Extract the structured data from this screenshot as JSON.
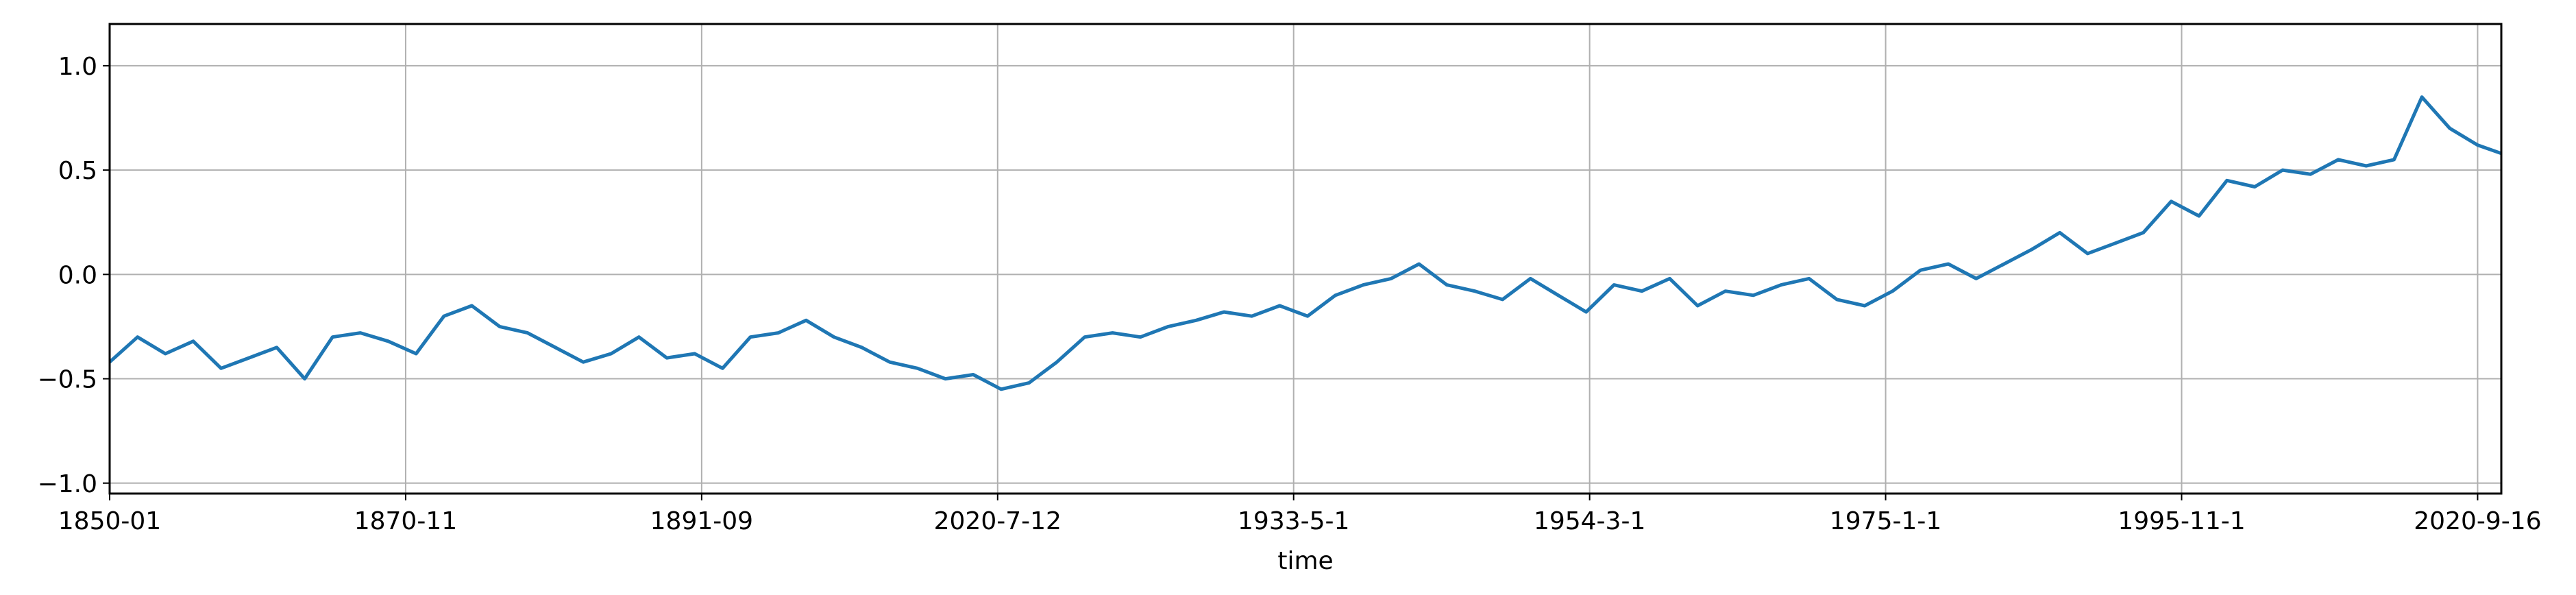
{
  "chart_data": {
    "type": "line",
    "title": "",
    "xlabel": "time",
    "ylabel": "",
    "grid": true,
    "legend": "none",
    "line_color": "#1f77b4",
    "xlim": [
      1850.0,
      2021.7
    ],
    "ylim": [
      -1.05,
      1.2
    ],
    "x_ticks": [
      {
        "value": 1850.0,
        "label": "1850-01"
      },
      {
        "value": 1871.25,
        "label": "1870-11"
      },
      {
        "value": 1892.5,
        "label": "1891-09"
      },
      {
        "value": 1913.75,
        "label": "2020-7-12"
      },
      {
        "value": 1935.0,
        "label": "1933-5-1"
      },
      {
        "value": 1956.25,
        "label": "1954-3-1"
      },
      {
        "value": 1977.5,
        "label": "1975-1-1"
      },
      {
        "value": 1998.75,
        "label": "1995-11-1"
      },
      {
        "value": 2020.0,
        "label": "2020-9-16"
      }
    ],
    "y_ticks": [
      {
        "value": -1.0,
        "label": "−1.0"
      },
      {
        "value": -0.5,
        "label": "−0.5"
      },
      {
        "value": 0.0,
        "label": "0.0"
      },
      {
        "value": 0.5,
        "label": "0.5"
      },
      {
        "value": 1.0,
        "label": "1.0"
      }
    ],
    "series": [
      {
        "x": [
          1850,
          1852,
          1854,
          1856,
          1858,
          1860,
          1862,
          1864,
          1866,
          1868,
          1870,
          1872,
          1874,
          1876,
          1878,
          1880,
          1882,
          1884,
          1886,
          1888,
          1890,
          1892,
          1894,
          1896,
          1898,
          1900,
          1902,
          1904,
          1906,
          1908,
          1910,
          1912,
          1914,
          1916,
          1918,
          1920,
          1922,
          1924,
          1926,
          1928,
          1930,
          1932,
          1934,
          1936,
          1938,
          1940,
          1942,
          1944,
          1946,
          1948,
          1950,
          1952,
          1954,
          1956,
          1958,
          1960,
          1962,
          1964,
          1966,
          1968,
          1970,
          1972,
          1974,
          1976,
          1978,
          1980,
          1982,
          1984,
          1986,
          1988,
          1990,
          1992,
          1994,
          1996,
          1998,
          2000,
          2002,
          2004,
          2006,
          2008,
          2010,
          2012,
          2014,
          2016,
          2018,
          2020,
          2021.7
        ],
        "y": [
          -0.42,
          -0.3,
          -0.38,
          -0.32,
          -0.45,
          -0.4,
          -0.35,
          -0.5,
          -0.3,
          -0.28,
          -0.32,
          -0.38,
          -0.2,
          -0.15,
          -0.25,
          -0.28,
          -0.35,
          -0.42,
          -0.38,
          -0.3,
          -0.4,
          -0.38,
          -0.45,
          -0.3,
          -0.28,
          -0.22,
          -0.3,
          -0.35,
          -0.42,
          -0.45,
          -0.5,
          -0.48,
          -0.55,
          -0.52,
          -0.42,
          -0.3,
          -0.28,
          -0.3,
          -0.25,
          -0.22,
          -0.18,
          -0.2,
          -0.15,
          -0.2,
          -0.1,
          -0.05,
          -0.02,
          0.05,
          -0.05,
          -0.08,
          -0.12,
          -0.02,
          -0.1,
          -0.18,
          -0.05,
          -0.08,
          -0.02,
          -0.15,
          -0.08,
          -0.1,
          -0.05,
          -0.02,
          -0.12,
          -0.15,
          -0.08,
          0.02,
          0.05,
          -0.02,
          0.05,
          0.12,
          0.2,
          0.1,
          0.15,
          0.2,
          0.35,
          0.28,
          0.45,
          0.42,
          0.5,
          0.48,
          0.55,
          0.52,
          0.55,
          0.85,
          0.7,
          0.62,
          0.58
        ]
      }
    ]
  }
}
